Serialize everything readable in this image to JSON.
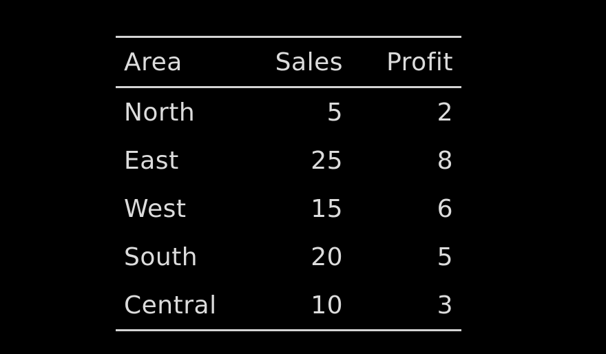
{
  "chart_data": {
    "type": "table",
    "columns": [
      "Area",
      "Sales",
      "Profit"
    ],
    "rows": [
      {
        "area": "North",
        "sales": "5",
        "profit": "2"
      },
      {
        "area": "East",
        "sales": "25",
        "profit": "8"
      },
      {
        "area": "West",
        "sales": "15",
        "profit": "6"
      },
      {
        "area": "South",
        "sales": "20",
        "profit": "5"
      },
      {
        "area": "Central",
        "sales": "10",
        "profit": "3"
      }
    ]
  },
  "colors": {
    "background": "#000000",
    "text": "#dcdcdc",
    "rule": "#d4d4d4"
  }
}
